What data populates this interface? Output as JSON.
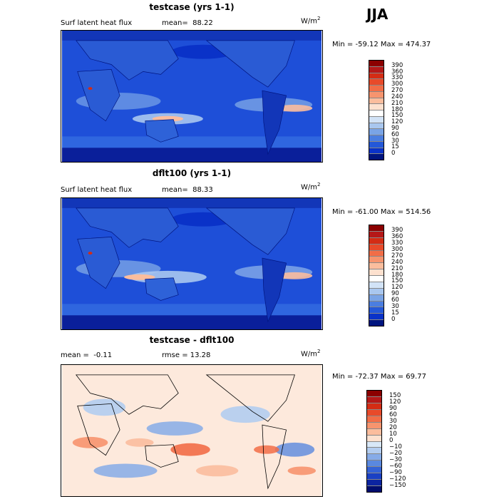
{
  "season": "JJA",
  "panels": [
    {
      "title": "testcase (yrs 1-1)",
      "variable": "Surf latent heat flux",
      "stats_left": "mean=",
      "stats_left_value": "88.22",
      "stats_right": "",
      "units_base": "W/m",
      "units_exp": "2",
      "minmax": "Min = -59.12 Max = 474.37",
      "colorbar_labels": [
        "390",
        "360",
        "330",
        "300",
        "270",
        "240",
        "210",
        "180",
        "150",
        "120",
        "90",
        "60",
        "30",
        "15",
        "0"
      ],
      "colorbar_colors": [
        "#8b0000",
        "#b51818",
        "#d42c14",
        "#e84a2a",
        "#f26d47",
        "#f7946e",
        "#fbbd9d",
        "#fde1cf",
        "#ffffff",
        "#d2e3f7",
        "#a9c7ef",
        "#7aa4e6",
        "#4b7ee0",
        "#2458d8",
        "#0a32c8",
        "#00157f"
      ]
    },
    {
      "title": "dflt100 (yrs 1-1)",
      "variable": "Surf latent heat flux",
      "stats_left": "mean=",
      "stats_left_value": "88.33",
      "stats_right": "",
      "units_base": "W/m",
      "units_exp": "2",
      "minmax": "Min = -61.00 Max = 514.56",
      "colorbar_labels": [
        "390",
        "360",
        "330",
        "300",
        "270",
        "240",
        "210",
        "180",
        "150",
        "120",
        "90",
        "60",
        "30",
        "15",
        "0"
      ],
      "colorbar_colors": [
        "#8b0000",
        "#b51818",
        "#d42c14",
        "#e84a2a",
        "#f26d47",
        "#f7946e",
        "#fbbd9d",
        "#fde1cf",
        "#ffffff",
        "#d2e3f7",
        "#a9c7ef",
        "#7aa4e6",
        "#4b7ee0",
        "#2458d8",
        "#0a32c8",
        "#00157f"
      ]
    },
    {
      "title": "testcase - dflt100",
      "variable": "",
      "stats_left": "mean =",
      "stats_left_value": "-0.11",
      "stats_right": "rmse =   13.28",
      "units_base": "W/m",
      "units_exp": "2",
      "minmax": "Min = -72.37 Max =   69.77",
      "colorbar_labels": [
        "150",
        "120",
        "90",
        "60",
        "30",
        "20",
        "10",
        "0",
        "−10",
        "−20",
        "−30",
        "−60",
        "−90",
        "−120",
        "−150"
      ],
      "colorbar_colors": [
        "#8b0000",
        "#b51818",
        "#d42c14",
        "#e84a2a",
        "#f26d47",
        "#f7946e",
        "#fbbd9d",
        "#fde1cf",
        "#d8e8f8",
        "#b3cdf0",
        "#86abe8",
        "#5a88df",
        "#3462d6",
        "#1a40c4",
        "#0c24a0",
        "#000d6e"
      ]
    }
  ]
}
